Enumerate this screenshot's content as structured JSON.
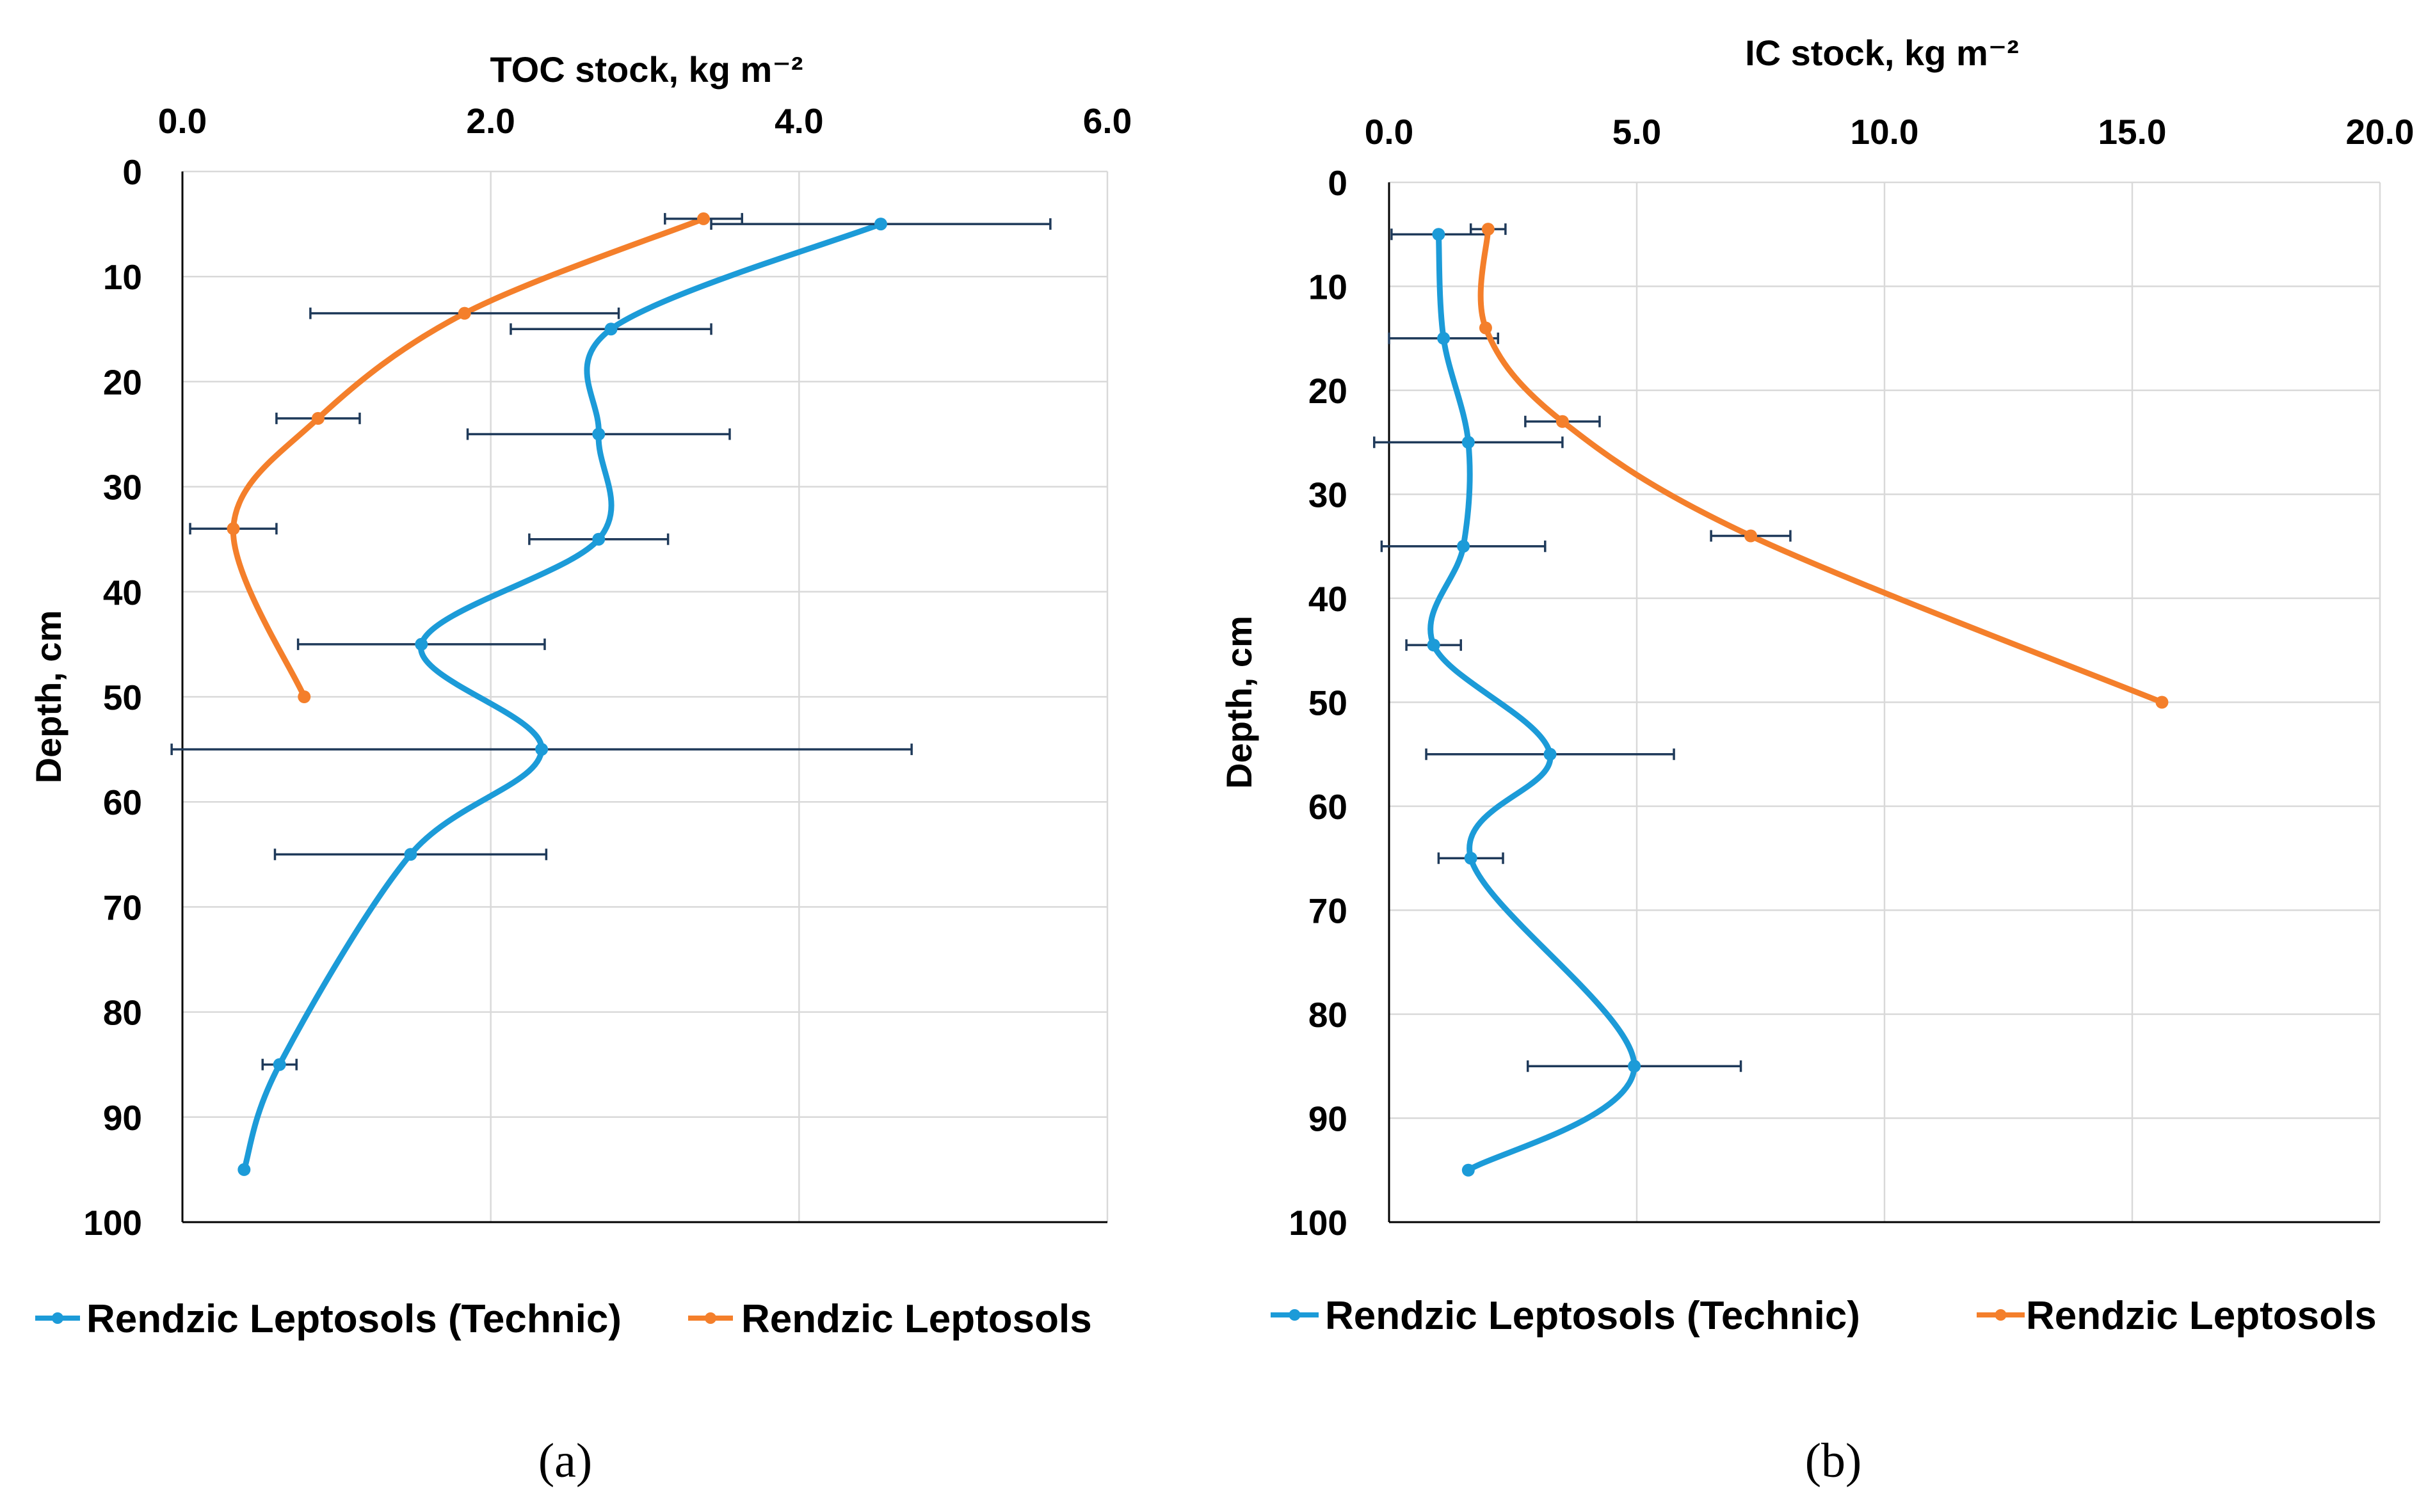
{
  "colors": {
    "technic": "#1C9BD8",
    "leptosols": "#F47F2B",
    "error_bar": "#1F3A5A",
    "grid": "#D9D9D9"
  },
  "chart_data": [
    {
      "type": "line",
      "panel_label": "(a)",
      "xlabel": "TOC stock, kg m⁻²",
      "ylabel": "Depth, cm",
      "xlim": [
        0,
        6
      ],
      "ylim": [
        0,
        100
      ],
      "y_inverted": true,
      "x_axis_position": "top",
      "x_ticks": [
        "0.0",
        "2.0",
        "4.0",
        "6.0"
      ],
      "y_ticks": [
        "0",
        "10",
        "20",
        "30",
        "40",
        "50",
        "60",
        "70",
        "80",
        "90",
        "100"
      ],
      "grid": "both",
      "legend_position": "bottom",
      "smooth": true,
      "series": [
        {
          "name": "Rendzic Leptosols (Technic)",
          "color": "#1C9BD8",
          "points": [
            {
              "x": 4.53,
              "y": 5,
              "err": 1.1
            },
            {
              "x": 2.78,
              "y": 15,
              "err": 0.65
            },
            {
              "x": 2.7,
              "y": 25,
              "err": 0.85
            },
            {
              "x": 2.7,
              "y": 35,
              "err": 0.45
            },
            {
              "x": 1.55,
              "y": 45,
              "err": 0.8
            },
            {
              "x": 2.33,
              "y": 55,
              "err": 2.4
            },
            {
              "x": 1.48,
              "y": 65,
              "err": 0.88
            },
            {
              "x": 0.63,
              "y": 85,
              "err": 0.11
            },
            {
              "x": 0.4,
              "y": 95,
              "err": 0
            }
          ]
        },
        {
          "name": "Rendzic Leptosols",
          "color": "#F47F2B",
          "points": [
            {
              "x": 3.38,
              "y": 4.5,
              "err": 0.25
            },
            {
              "x": 1.83,
              "y": 13.5,
              "err": 1.0
            },
            {
              "x": 0.88,
              "y": 23.5,
              "err": 0.27
            },
            {
              "x": 0.33,
              "y": 34,
              "err": 0.28
            },
            {
              "x": 0.79,
              "y": 50,
              "err": 0
            }
          ]
        }
      ]
    },
    {
      "type": "line",
      "panel_label": "(b)",
      "xlabel": "IC stock, kg m⁻²",
      "ylabel": "Depth, cm",
      "xlim": [
        0,
        20
      ],
      "ylim": [
        0,
        100
      ],
      "y_inverted": true,
      "x_axis_position": "top",
      "x_ticks": [
        "0.0",
        "5.0",
        "10.0",
        "15.0",
        "20.0"
      ],
      "y_ticks": [
        "0",
        "10",
        "20",
        "30",
        "40",
        "50",
        "60",
        "70",
        "80",
        "90",
        "100"
      ],
      "grid": "both",
      "legend_position": "bottom",
      "smooth": true,
      "series": [
        {
          "name": "Rendzic Leptosols (Technic)",
          "color": "#1C9BD8",
          "points": [
            {
              "x": 1.0,
              "y": 5,
              "err": 0.95
            },
            {
              "x": 1.1,
              "y": 15,
              "err": 1.1
            },
            {
              "x": 1.6,
              "y": 25,
              "err": 1.9
            },
            {
              "x": 1.5,
              "y": 35,
              "err": 1.65
            },
            {
              "x": 0.9,
              "y": 44.5,
              "err": 0.55
            },
            {
              "x": 3.25,
              "y": 55,
              "err": 2.5
            },
            {
              "x": 1.65,
              "y": 65,
              "err": 0.65
            },
            {
              "x": 4.95,
              "y": 85,
              "err": 2.15
            },
            {
              "x": 1.6,
              "y": 95,
              "err": 0
            }
          ]
        },
        {
          "name": "Rendzic Leptosols",
          "color": "#F47F2B",
          "points": [
            {
              "x": 2.0,
              "y": 4.5,
              "err": 0.35
            },
            {
              "x": 1.95,
              "y": 14,
              "err": 0
            },
            {
              "x": 3.5,
              "y": 23,
              "err": 0.75
            },
            {
              "x": 7.3,
              "y": 34,
              "err": 0.8
            },
            {
              "x": 15.6,
              "y": 50,
              "err": 0
            }
          ]
        }
      ]
    }
  ]
}
